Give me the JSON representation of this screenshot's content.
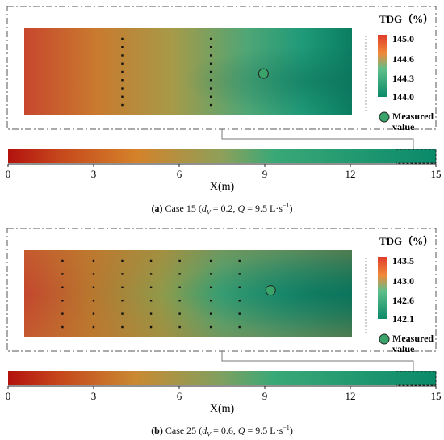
{
  "chart_data": [
    {
      "type": "heatmap",
      "panel_label": "(a)",
      "caption_case": "Case 15",
      "caption_params": {
        "dv_sym": "d",
        "dv_sub": "V",
        "dv_val": "= 0.2,",
        "q_sym": "Q",
        "q_val": "= 9.5 L·s",
        "q_exp": "−1",
        "close": ")"
      },
      "colorbar": {
        "title": "TDG（%）",
        "ticks": [
          "145.0",
          "144.6",
          "144.3",
          "144.0"
        ],
        "range": [
          144.0,
          145.0
        ]
      },
      "legend_label_1": "Measured",
      "legend_label_2": "value",
      "xlabel": "X(m)",
      "x_ticks": [
        "0",
        "3",
        "6",
        "9",
        "12",
        "15"
      ],
      "x_range": [
        0,
        15
      ],
      "zoom_x_range": [
        13.6,
        15
      ],
      "probe_columns_x": [
        4.1,
        7.8
      ],
      "probe_rows": 9,
      "measured_points": [
        {
          "x": 10.0,
          "y_frac": 0.52
        }
      ]
    },
    {
      "type": "heatmap",
      "panel_label": "(b)",
      "caption_case": "Case 25",
      "caption_params": {
        "dv_sym": "d",
        "dv_sub": "V",
        "dv_val": "= 0.6,",
        "q_sym": "Q",
        "q_val": "= 9.5 L·s",
        "q_exp": "−1",
        "close": ")"
      },
      "colorbar": {
        "title": "TDG（%）",
        "ticks": [
          "143.5",
          "143.0",
          "142.6",
          "142.1"
        ],
        "range": [
          142.1,
          143.5
        ]
      },
      "legend_label_1": "Measured",
      "legend_label_2": "value",
      "xlabel": "X(m)",
      "x_ticks": [
        "0",
        "3",
        "6",
        "9",
        "12",
        "15"
      ],
      "x_range": [
        0,
        15
      ],
      "zoom_x_range": [
        13.6,
        15
      ],
      "probe_columns_x": [
        1.6,
        2.9,
        4.1,
        5.3,
        6.5,
        7.8,
        9.0
      ],
      "probe_rows": 6,
      "measured_points": [
        {
          "x": 10.3,
          "y_frac": 0.46
        }
      ]
    }
  ]
}
